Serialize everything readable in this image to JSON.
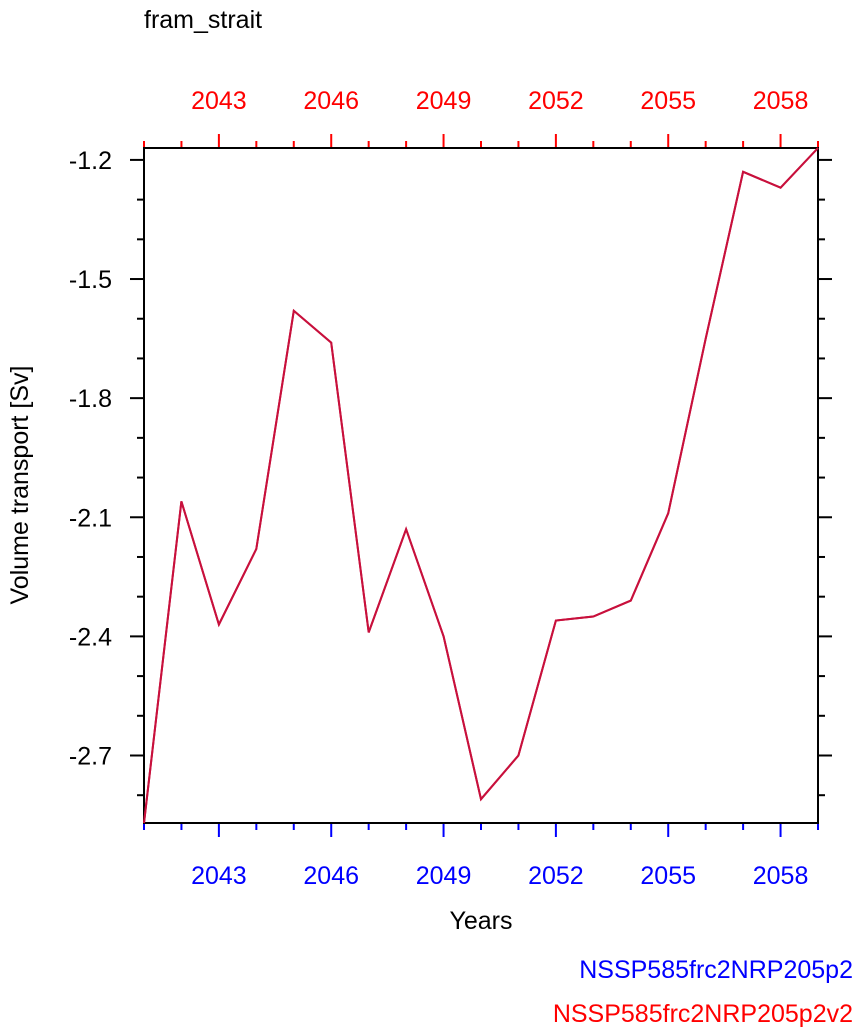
{
  "chart_data": {
    "type": "line",
    "title": "fram_strait",
    "xlabel": "Years",
    "ylabel": "Volume transport [Sv]",
    "xlim": [
      2041,
      2059
    ],
    "ylim": [
      -2.87,
      -1.17
    ],
    "x_ticks": [
      2043,
      2046,
      2049,
      2052,
      2055,
      2058
    ],
    "x_tick_labels": [
      "2043",
      "2046",
      "2049",
      "2052",
      "2055",
      "2058"
    ],
    "y_ticks": [
      -1.2,
      -1.5,
      -1.8,
      -2.1,
      -2.4,
      -2.7
    ],
    "y_tick_labels": [
      "-1.2",
      "-1.5",
      "-1.8",
      "-2.1",
      "-2.4",
      "-2.7"
    ],
    "x": [
      2041,
      2042,
      2043,
      2044,
      2045,
      2046,
      2047,
      2048,
      2049,
      2050,
      2051,
      2052,
      2053,
      2054,
      2055,
      2056,
      2057,
      2058,
      2059
    ],
    "series": [
      {
        "name": "NSSP585frc2NRP205p2",
        "color": "#0000ff",
        "values": [
          -2.87,
          -2.06,
          -2.37,
          -2.18,
          -1.58,
          -1.66,
          -2.39,
          -2.13,
          -2.4,
          -2.81,
          -2.7,
          -2.36,
          -2.35,
          -2.31,
          -2.09,
          -1.65,
          -1.23,
          -1.27,
          -1.17
        ]
      },
      {
        "name": "NSSP585frc2NRP205p2v2",
        "color": "#ff0000",
        "values": [
          -2.87,
          -2.06,
          -2.37,
          -2.18,
          -1.58,
          -1.66,
          -2.39,
          -2.13,
          -2.4,
          -2.81,
          -2.7,
          -2.36,
          -2.35,
          -2.31,
          -2.09,
          -1.65,
          -1.23,
          -1.27,
          -1.17
        ]
      }
    ],
    "line_color": "#c8103c",
    "bottom_axis_color": "#0000ff",
    "top_axis_color": "#ff0000",
    "grid": false,
    "legend_position": "bottom-right"
  }
}
